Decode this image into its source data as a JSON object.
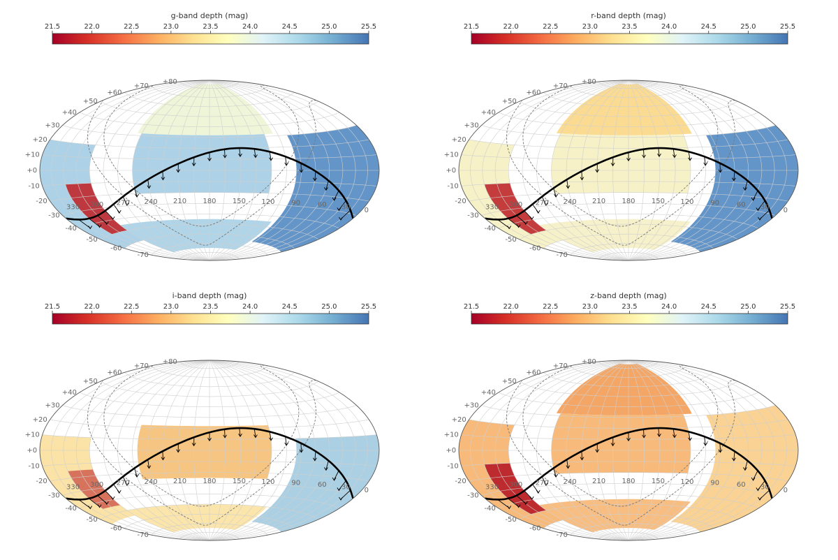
{
  "panels": [
    {
      "id": "g",
      "title": "g-band depth (mag)",
      "fill_profile": "g"
    },
    {
      "id": "r",
      "title": "r-band depth (mag)",
      "fill_profile": "r"
    },
    {
      "id": "i",
      "title": "i-band depth (mag)",
      "fill_profile": "i"
    },
    {
      "id": "z",
      "title": "z-band depth (mag)",
      "fill_profile": "z"
    }
  ],
  "colorbar": {
    "min": 21.5,
    "max": 25.5,
    "ticks": [
      "21.5",
      "22.0",
      "22.5",
      "23.0",
      "23.5",
      "24.0",
      "24.5",
      "25.0",
      "25.5"
    ],
    "stops": [
      "#a50026",
      "#d73027",
      "#f46d43",
      "#fdae61",
      "#fee090",
      "#ffffbf",
      "#e0f3f8",
      "#abd9e9",
      "#74add1",
      "#4575b4"
    ]
  },
  "dec_labels": [
    "+80",
    "+70",
    "+60",
    "+50",
    "+40",
    "+30",
    "+20",
    "+10",
    "+0",
    "-10",
    "-20",
    "-30",
    "-40",
    "-50",
    "-60",
    "-70"
  ],
  "ra_labels": [
    "330",
    "300",
    "270",
    "240",
    "210",
    "180",
    "150",
    "120",
    "90",
    "60",
    "30",
    "0"
  ],
  "band_colors": {
    "g": {
      "deep": "#5b8fc6",
      "mid": "#a9d0e6",
      "north": "#eef4d6",
      "edge": "#c0282c"
    },
    "r": {
      "deep": "#5b8fc6",
      "mid": "#f5f0c4",
      "north": "#fbd98c",
      "edge": "#c0282c"
    },
    "i": {
      "deep": "#a7cde2",
      "mid": "#fbe2a2",
      "north": "#f7c27b",
      "edge": "#c0282c"
    },
    "z": {
      "deep": "#f9d08e",
      "mid": "#f7b673",
      "north": "#f3a15e",
      "edge": "#b71c26"
    }
  }
}
